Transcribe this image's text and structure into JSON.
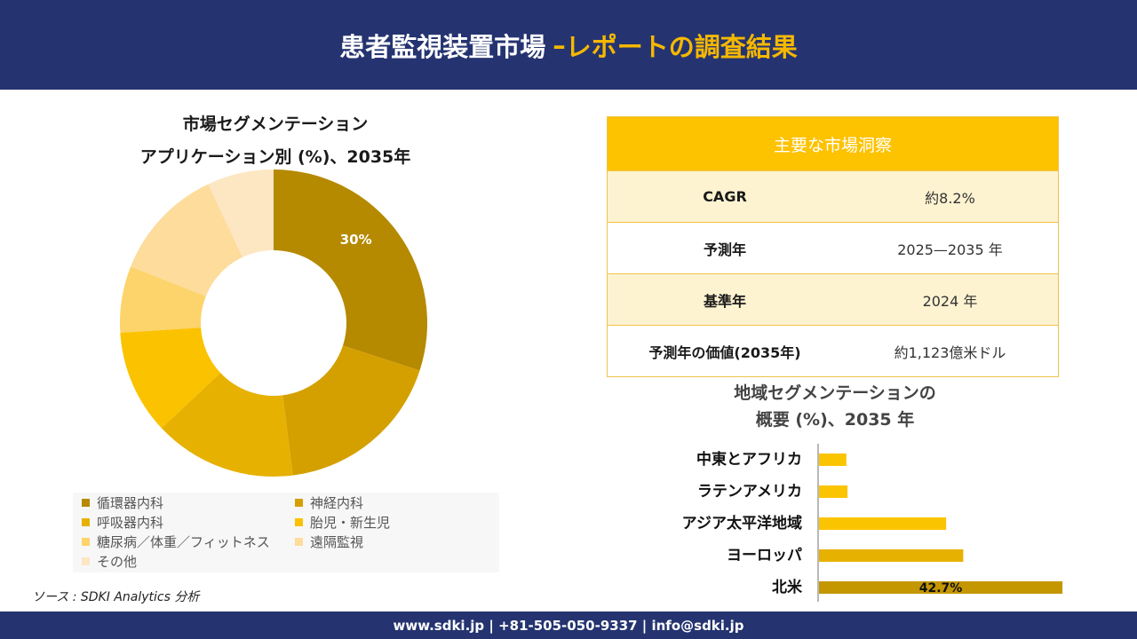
{
  "header": {
    "title_main": "患者監視装置市場",
    "title_sep": "–",
    "title_sub": "レポートの調査結果"
  },
  "donut": {
    "title_line1": "市場セグメンテーション",
    "title_line2": "アプリケーション別 (%)、2035年"
  },
  "insights": {
    "header": "主要な市場洞察",
    "rows": [
      {
        "label": "CAGR",
        "value": "約8.2%"
      },
      {
        "label": "予測年",
        "value": "2025—2035 年"
      },
      {
        "label": "基準年",
        "value": "2024 年"
      },
      {
        "label": "予測年の価値(2035年)",
        "value": "約1,123億米ドル"
      }
    ]
  },
  "bar": {
    "title_line1": "地域セグメンテーションの",
    "title_line2": "概要 (%)、2035 年"
  },
  "source": "ソース : SDKI Analytics 分析",
  "footer": "www.sdki.jp | +81-505-050-9337 | info@sdki.jp",
  "chart_data": [
    {
      "type": "pie",
      "variant": "donut",
      "title": "市場セグメンテーション アプリケーション別 (%)、2035年",
      "categories": [
        "循環器内科",
        "神経内科",
        "呼吸器内科",
        "胎児・新生児",
        "糖尿病／体重／フィットネス",
        "遠隔監視",
        "その他"
      ],
      "values": [
        30,
        18,
        15,
        11,
        7,
        12,
        7
      ],
      "colors": [
        "#b58900",
        "#d4a000",
        "#e6b100",
        "#fbc200",
        "#fdd36b",
        "#fddc9c",
        "#fde6c2"
      ],
      "data_labels": [
        "30%",
        "",
        "",
        "",
        "",
        "",
        ""
      ],
      "legend": "bottom"
    },
    {
      "type": "bar",
      "orientation": "horizontal",
      "title": "地域セグメンテーションの 概要 (%)、2035 年",
      "categories": [
        "中東とアフリカ",
        "ラテンアメリカ",
        "アジア太平洋地域",
        "ヨーロッパ",
        "北米"
      ],
      "values": [
        4.8,
        5.0,
        22.3,
        25.3,
        42.7
      ],
      "colors": [
        "#fbc400",
        "#fbc400",
        "#fbc400",
        "#e6b100",
        "#c49600"
      ],
      "data_labels": [
        "",
        "",
        "",
        "",
        "42.7%"
      ],
      "xlim": [
        0,
        43
      ]
    }
  ]
}
